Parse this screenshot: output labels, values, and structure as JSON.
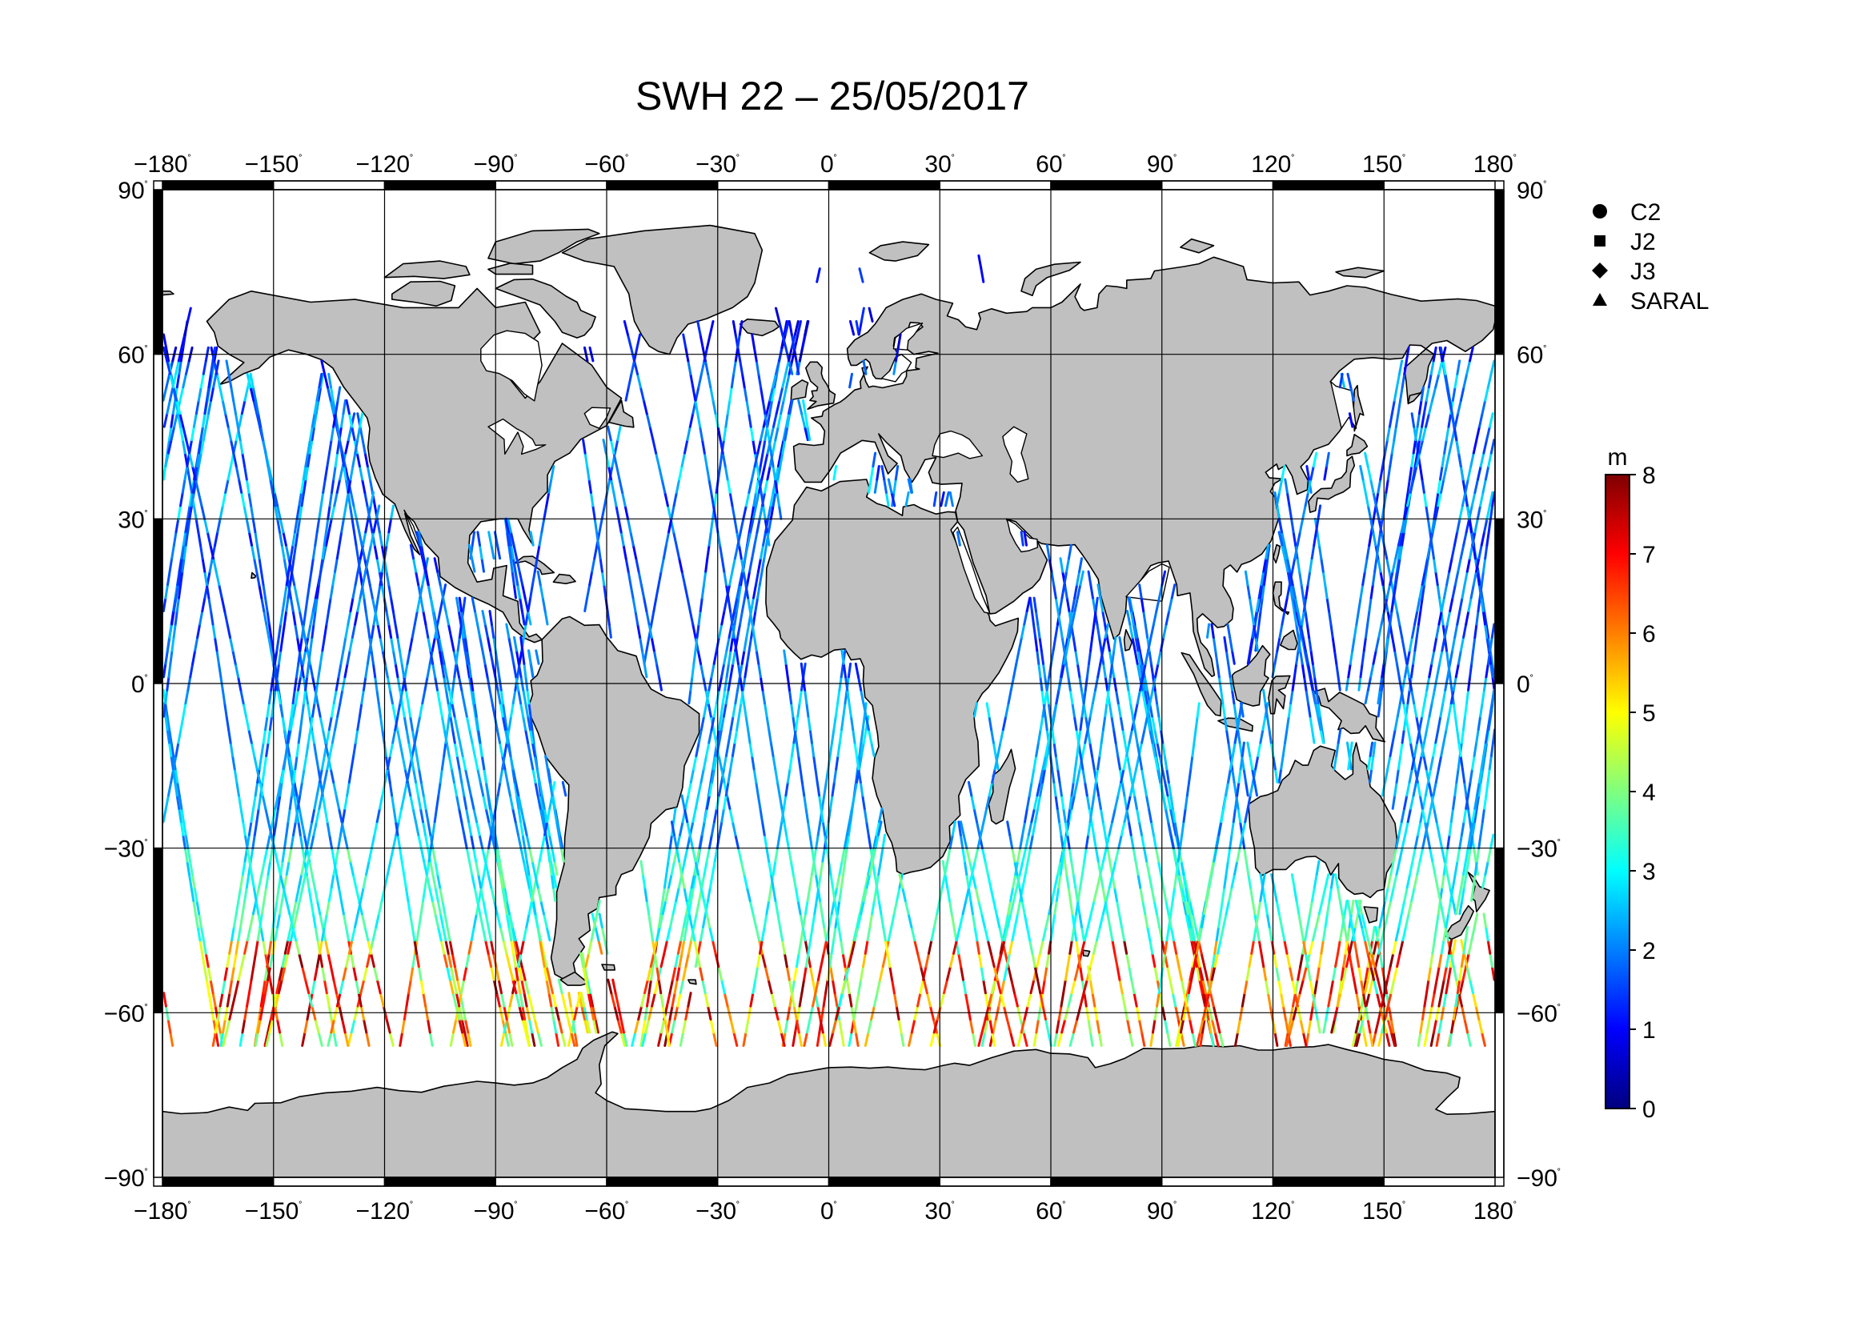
{
  "title": "SWH 22 – 25/05/2017",
  "map": {
    "projection": "plate carree",
    "lon_range": [
      -180,
      180
    ],
    "lat_range": [
      -90,
      90
    ],
    "lon_ticks": [
      "−180",
      "−150",
      "−120",
      "−90",
      "−60",
      "−30",
      "0",
      "30",
      "60",
      "90",
      "120",
      "150",
      "180"
    ],
    "lat_ticks": [
      "90",
      "60",
      "30",
      "0",
      "−30",
      "−60",
      "−90"
    ],
    "degree_symbol": "˚",
    "land_color": "#c0c0c0",
    "ocean_color": "#ffffff",
    "grid": true,
    "frame": "alternating black/white 30-degree bands"
  },
  "legend": {
    "placement": "right",
    "items": [
      {
        "symbol": "circle",
        "label": "C2"
      },
      {
        "symbol": "square",
        "label": "J2"
      },
      {
        "symbol": "diamond",
        "label": "J3"
      },
      {
        "symbol": "triangle",
        "label": "SARAL"
      }
    ]
  },
  "colorbar": {
    "unit": "m",
    "min": 0,
    "max": 8,
    "ticks": [
      "0",
      "1",
      "2",
      "3",
      "4",
      "5",
      "6",
      "7",
      "8"
    ],
    "colormap": "jet",
    "stops": [
      "#00007f",
      "#0000ff",
      "#007fff",
      "#00ffff",
      "#7fff7f",
      "#ffff00",
      "#ff7f00",
      "#ff0000",
      "#7f0000"
    ]
  },
  "chart_data": {
    "type": "scatter",
    "variable": "significant wave height",
    "unit": "m",
    "value_range": [
      0,
      8
    ],
    "zones": [
      {
        "lat_range": [
          60,
          90
        ],
        "swh_m": [
          0.5,
          1.5
        ]
      },
      {
        "lat_range": [
          30,
          60
        ],
        "swh_m": [
          1,
          3
        ]
      },
      {
        "lat_range": [
          0,
          30
        ],
        "swh_m": [
          1,
          2.5
        ]
      },
      {
        "lat_range": [
          -30,
          0
        ],
        "swh_m": [
          1.5,
          3
        ]
      },
      {
        "lat_range": [
          -45,
          -30
        ],
        "swh_m": [
          2.5,
          4
        ]
      },
      {
        "lat_range": [
          -66,
          -45
        ],
        "swh_m": [
          3,
          8
        ]
      }
    ],
    "lat_coverage": [
      -66,
      82
    ]
  }
}
